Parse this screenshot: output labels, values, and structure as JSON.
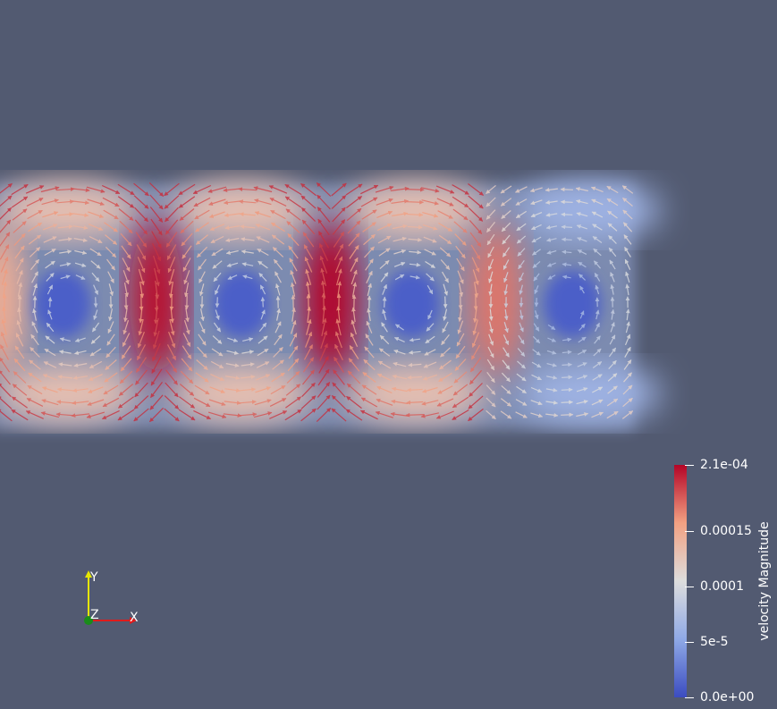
{
  "viewport": {
    "background": "#525a71"
  },
  "colorbar": {
    "title": "velocity Magnitude",
    "tick_labels": [
      "2.1e-04",
      "0.00015",
      "0.0001",
      "5e-5",
      "0.0e+00"
    ],
    "tick_values": [
      0.00021,
      0.00015,
      0.0001,
      5e-05,
      0.0
    ],
    "range": [
      0.0,
      0.00021
    ],
    "colormap": [
      "#3b4cc0",
      "#8fa9e6",
      "#dddddd",
      "#f2a182",
      "#b40426"
    ]
  },
  "axes_widget": {
    "x_label": "X",
    "y_label": "Y",
    "z_label": "Z",
    "x_color": "#e01b1b",
    "y_color": "#e6e600",
    "z_color": "#1a8c1a"
  }
}
